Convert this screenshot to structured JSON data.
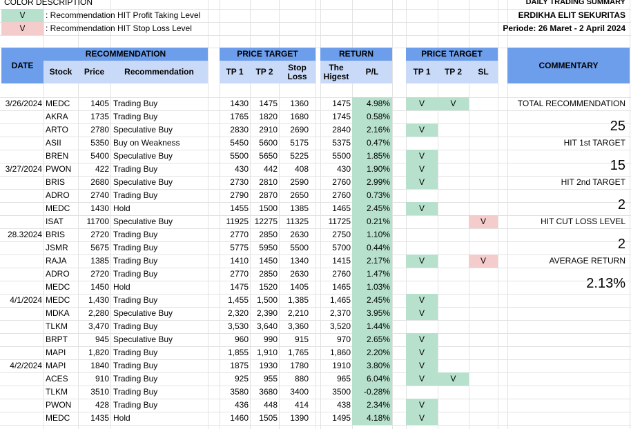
{
  "legend": {
    "title": "COLOR DESCRIPTION",
    "items": [
      {
        "mark": "V",
        "text": ": Recommendation HIT Profit Taking Level",
        "color": "#b7e1cd"
      },
      {
        "mark": "V",
        "text": ": Recommendation HIT Stop Loss Level",
        "color": "#f4cccc"
      }
    ]
  },
  "header_info": {
    "title": "DAILY TRADING SUMMARY",
    "company": "ERDIKHA ELIT SEKURITAS",
    "period": "Periode:  26 Maret - 2 April 2024"
  },
  "colors": {
    "header_blue": "#6d9eeb",
    "sub_blue": "#c9daf8",
    "hit_green": "#b7e1cd",
    "hit_red": "#f4cccc"
  },
  "table_headers": {
    "date": "DATE",
    "recommendation_group": "RECOMMENDATION",
    "stock": "Stock",
    "price": "Price",
    "recommendation": "Recommendation",
    "price_target_group": "PRICE TARGET",
    "tp1": "TP 1",
    "tp2": "TP 2",
    "stop_loss": "Stop Loss",
    "return_group": "RETURN",
    "highest": "The Higest",
    "pl": "P/L",
    "hit_group": "PRICE TARGET",
    "hit_tp1": "TP 1",
    "hit_tp2": "TP 2",
    "hit_sl": "SL",
    "commentary": "COMMENTARY"
  },
  "rows": [
    {
      "date": "3/26/2024",
      "stock": "MEDC",
      "price": "1405",
      "rec": "Trading Buy",
      "tp1": "1430",
      "tp2": "1475",
      "sl": "1360",
      "high": "1475",
      "pl": "4.98%",
      "h1": "V",
      "h2": "V",
      "hs": ""
    },
    {
      "date": "",
      "stock": "AKRA",
      "price": "1735",
      "rec": "Trading Buy",
      "tp1": "1765",
      "tp2": "1820",
      "sl": "1680",
      "high": "1745",
      "pl": "0.58%",
      "h1": "",
      "h2": "",
      "hs": ""
    },
    {
      "date": "",
      "stock": "ARTO",
      "price": "2780",
      "rec": "Speculative Buy",
      "tp1": "2830",
      "tp2": "2910",
      "sl": "2690",
      "high": "2840",
      "pl": "2.16%",
      "h1": "V",
      "h2": "",
      "hs": ""
    },
    {
      "date": "",
      "stock": "ASII",
      "price": "5350",
      "rec": "Buy on Weakness",
      "tp1": "5450",
      "tp2": "5600",
      "sl": "5175",
      "high": "5375",
      "pl": "0.47%",
      "h1": "",
      "h2": "",
      "hs": ""
    },
    {
      "date": "",
      "stock": "BREN",
      "price": "5400",
      "rec": "Speculative Buy",
      "tp1": "5500",
      "tp2": "5650",
      "sl": "5225",
      "high": "5500",
      "pl": "1.85%",
      "h1": "V",
      "h2": "",
      "hs": ""
    },
    {
      "date": "3/27/2024",
      "stock": "PWON",
      "price": "422",
      "rec": "Trading Buy",
      "tp1": "430",
      "tp2": "442",
      "sl": "408",
      "high": "430",
      "pl": "1.90%",
      "h1": "V",
      "h2": "",
      "hs": ""
    },
    {
      "date": "",
      "stock": "BRIS",
      "price": "2680",
      "rec": "Speculative Buy",
      "tp1": "2730",
      "tp2": "2810",
      "sl": "2590",
      "high": "2760",
      "pl": "2.99%",
      "h1": "V",
      "h2": "",
      "hs": ""
    },
    {
      "date": "",
      "stock": "ADRO",
      "price": "2740",
      "rec": "Trading Buy",
      "tp1": "2790",
      "tp2": "2870",
      "sl": "2650",
      "high": "2760",
      "pl": "0.73%",
      "h1": "",
      "h2": "",
      "hs": ""
    },
    {
      "date": "",
      "stock": "MEDC",
      "price": "1430",
      "rec": "Hold",
      "tp1": "1455",
      "tp2": "1500",
      "sl": "1385",
      "high": "1465",
      "pl": "2.45%",
      "h1": "V",
      "h2": "",
      "hs": ""
    },
    {
      "date": "",
      "stock": "ISAT",
      "price": "11700",
      "rec": "Speculative Buy",
      "tp1": "11925",
      "tp2": "12275",
      "sl": "11325",
      "high": "11725",
      "pl": "0.21%",
      "h1": "",
      "h2": "",
      "hs": "V"
    },
    {
      "date": "28.32024",
      "stock": "BRIS",
      "price": "2720",
      "rec": "Trading Buy",
      "tp1": "2770",
      "tp2": "2850",
      "sl": "2630",
      "high": "2750",
      "pl": "1.10%",
      "h1": "",
      "h2": "",
      "hs": ""
    },
    {
      "date": "",
      "stock": "JSMR",
      "price": "5675",
      "rec": "Trading Buy",
      "tp1": "5775",
      "tp2": "5950",
      "sl": "5500",
      "high": "5700",
      "pl": "0.44%",
      "h1": "",
      "h2": "",
      "hs": ""
    },
    {
      "date": "",
      "stock": "RAJA",
      "price": "1385",
      "rec": "Trading Buy",
      "tp1": "1410",
      "tp2": "1450",
      "sl": "1340",
      "high": "1415",
      "pl": "2.17%",
      "h1": "V",
      "h2": "",
      "hs": "V"
    },
    {
      "date": "",
      "stock": "ADRO",
      "price": "2720",
      "rec": "Trading Buy",
      "tp1": "2770",
      "tp2": "2850",
      "sl": "2630",
      "high": "2760",
      "pl": "1.47%",
      "h1": "",
      "h2": "",
      "hs": ""
    },
    {
      "date": "",
      "stock": "MEDC",
      "price": "1450",
      "rec": "Hold",
      "tp1": "1475",
      "tp2": "1520",
      "sl": "1405",
      "high": "1465",
      "pl": "1.03%",
      "h1": "",
      "h2": "",
      "hs": ""
    },
    {
      "date": "4/1/2024",
      "stock": "MEDC",
      "price": "1,430",
      "rec": "Trading Buy",
      "tp1": "1,455",
      "tp2": "1,500",
      "sl": "1,385",
      "high": "1,465",
      "pl": "2.45%",
      "h1": "V",
      "h2": "",
      "hs": ""
    },
    {
      "date": "",
      "stock": "MDKA",
      "price": "2,280",
      "rec": "Speculative Buy",
      "tp1": "2,320",
      "tp2": "2,390",
      "sl": "2,210",
      "high": "2,370",
      "pl": "3.95%",
      "h1": "V",
      "h2": "",
      "hs": ""
    },
    {
      "date": "",
      "stock": "TLKM",
      "price": "3,470",
      "rec": "Trading Buy",
      "tp1": "3,530",
      "tp2": "3,640",
      "sl": "3,360",
      "high": "3,520",
      "pl": "1.44%",
      "h1": "",
      "h2": "",
      "hs": ""
    },
    {
      "date": "",
      "stock": "BRPT",
      "price": "945",
      "rec": "Speculative Buy",
      "tp1": "960",
      "tp2": "990",
      "sl": "915",
      "high": "970",
      "pl": "2.65%",
      "h1": "V",
      "h2": "",
      "hs": ""
    },
    {
      "date": "",
      "stock": "MAPI",
      "price": "1,820",
      "rec": "Trading Buy",
      "tp1": "1,855",
      "tp2": "1,910",
      "sl": "1,765",
      "high": "1,860",
      "pl": "2.20%",
      "h1": "V",
      "h2": "",
      "hs": ""
    },
    {
      "date": "4/2/2024",
      "stock": "MAPI",
      "price": "1840",
      "rec": "Trading Buy",
      "tp1": "1875",
      "tp2": "1930",
      "sl": "1780",
      "high": "1910",
      "pl": "3.80%",
      "h1": "V",
      "h2": "",
      "hs": ""
    },
    {
      "date": "",
      "stock": "ACES",
      "price": "910",
      "rec": "Trading Buy",
      "tp1": "925",
      "tp2": "955",
      "sl": "880",
      "high": "965",
      "pl": "6.04%",
      "h1": "V",
      "h2": "V",
      "hs": ""
    },
    {
      "date": "",
      "stock": "TLKM",
      "price": "3510",
      "rec": "Trading Buy",
      "tp1": "3580",
      "tp2": "3680",
      "sl": "3400",
      "high": "3500",
      "pl": "-0.28%",
      "h1": "",
      "h2": "",
      "hs": ""
    },
    {
      "date": "",
      "stock": "PWON",
      "price": "428",
      "rec": "Trading Buy",
      "tp1": "436",
      "tp2": "448",
      "sl": "414",
      "high": "438",
      "pl": "2.34%",
      "h1": "V",
      "h2": "",
      "hs": ""
    },
    {
      "date": "",
      "stock": "MEDC",
      "price": "1435",
      "rec": "Hold",
      "tp1": "1460",
      "tp2": "1505",
      "sl": "1390",
      "high": "1495",
      "pl": "4.18%",
      "h1": "V",
      "h2": "",
      "hs": ""
    }
  ],
  "commentary": {
    "total_label": "TOTAL RECOMMENDATION",
    "total_value": "25",
    "hit1_label": "HIT 1st TARGET",
    "hit1_value": "15",
    "hit2_label": "HIT 2nd TARGET",
    "hit2_value": "2",
    "cut_label": "HIT CUT LOSS LEVEL",
    "cut_value": "2",
    "avg_label": "AVERAGE RETURN",
    "avg_value": "2.13%"
  }
}
